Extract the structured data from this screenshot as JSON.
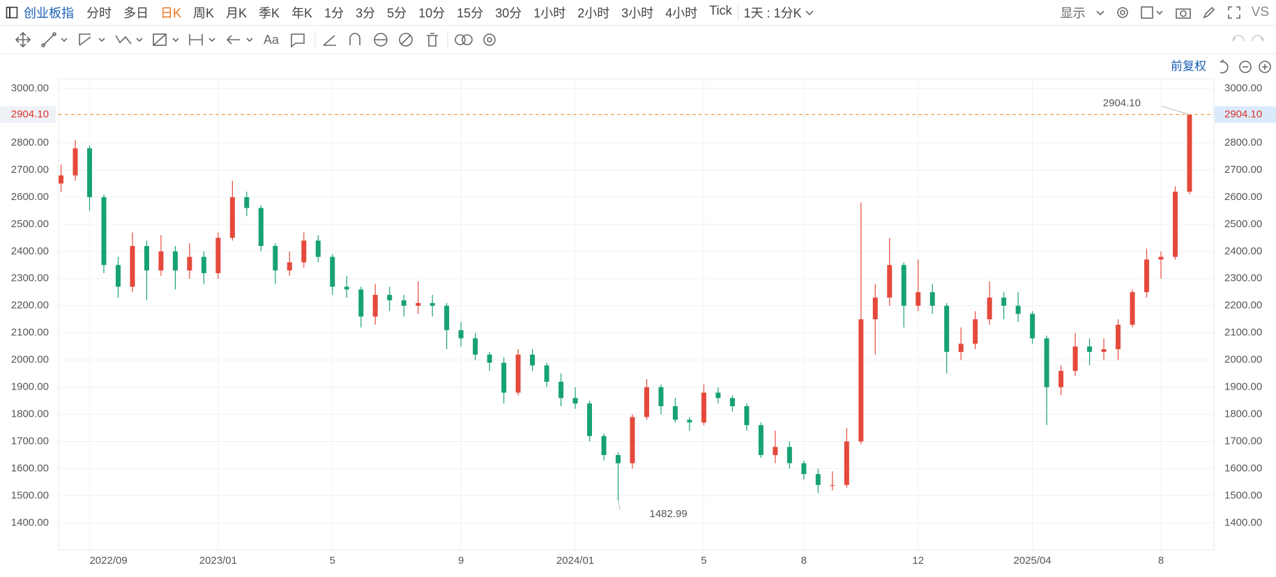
{
  "toolbar": {
    "symbol": "创业板指",
    "periods": [
      "分时",
      "多日",
      "日K",
      "周K",
      "月K",
      "季K",
      "年K",
      "1分",
      "3分",
      "5分",
      "10分",
      "15分",
      "30分",
      "1小时",
      "2小时",
      "3小时",
      "4小时",
      "Tick"
    ],
    "active_period": 2,
    "active_color": "#e8731c",
    "interval": "1天 : 1分K",
    "display": "显示",
    "compare": "VS",
    "text_tool": "Aa",
    "adjust": "前复权"
  },
  "chart_data": {
    "type": "candlestick",
    "categories": [
      null,
      null,
      "2022/09",
      null,
      null,
      null,
      null,
      null,
      null,
      null,
      null,
      "2023/01",
      null,
      null,
      null,
      null,
      null,
      null,
      null,
      "5",
      null,
      null,
      null,
      null,
      null,
      null,
      null,
      null,
      "9",
      null,
      null,
      null,
      null,
      null,
      null,
      null,
      "2024/01",
      null,
      null,
      null,
      null,
      null,
      null,
      null,
      null,
      "5",
      null,
      null,
      null,
      null,
      null,
      null,
      "8",
      null,
      null,
      null,
      null,
      null,
      null,
      null,
      "12",
      null,
      null,
      null,
      null,
      null,
      null,
      null,
      "2025/04",
      null,
      null,
      null,
      null,
      null,
      null,
      null,
      null,
      "8",
      null,
      null
    ],
    "ohlc": [
      [
        2650,
        2720,
        2620,
        2680
      ],
      [
        2680,
        2810,
        2660,
        2780
      ],
      [
        2780,
        2790,
        2550,
        2600
      ],
      [
        2600,
        2610,
        2320,
        2350
      ],
      [
        2350,
        2380,
        2230,
        2270
      ],
      [
        2270,
        2470,
        2250,
        2420
      ],
      [
        2420,
        2440,
        2220,
        2330
      ],
      [
        2330,
        2460,
        2310,
        2400
      ],
      [
        2400,
        2420,
        2260,
        2330
      ],
      [
        2330,
        2430,
        2300,
        2380
      ],
      [
        2380,
        2400,
        2280,
        2320
      ],
      [
        2320,
        2470,
        2300,
        2450
      ],
      [
        2450,
        2660,
        2440,
        2600
      ],
      [
        2600,
        2620,
        2530,
        2560
      ],
      [
        2560,
        2570,
        2400,
        2420
      ],
      [
        2420,
        2430,
        2280,
        2330
      ],
      [
        2330,
        2400,
        2310,
        2360
      ],
      [
        2360,
        2470,
        2340,
        2440
      ],
      [
        2440,
        2460,
        2360,
        2380
      ],
      [
        2380,
        2390,
        2240,
        2270
      ],
      [
        2270,
        2310,
        2230,
        2260
      ],
      [
        2260,
        2270,
        2120,
        2160
      ],
      [
        2160,
        2280,
        2130,
        2240
      ],
      [
        2240,
        2270,
        2180,
        2220
      ],
      [
        2220,
        2240,
        2160,
        2200
      ],
      [
        2200,
        2290,
        2170,
        2210
      ],
      [
        2210,
        2240,
        2160,
        2200
      ],
      [
        2200,
        2210,
        2040,
        2110
      ],
      [
        2110,
        2140,
        2050,
        2080
      ],
      [
        2080,
        2100,
        2000,
        2020
      ],
      [
        2020,
        2030,
        1960,
        1990
      ],
      [
        1990,
        2010,
        1840,
        1880
      ],
      [
        1880,
        2040,
        1870,
        2020
      ],
      [
        2020,
        2040,
        1960,
        1980
      ],
      [
        1980,
        1990,
        1900,
        1920
      ],
      [
        1920,
        1950,
        1830,
        1860
      ],
      [
        1860,
        1900,
        1820,
        1840
      ],
      [
        1840,
        1850,
        1700,
        1720
      ],
      [
        1720,
        1730,
        1630,
        1650
      ],
      [
        1650,
        1660,
        1482.99,
        1620
      ],
      [
        1620,
        1800,
        1600,
        1790
      ],
      [
        1790,
        1930,
        1780,
        1900
      ],
      [
        1900,
        1910,
        1800,
        1830
      ],
      [
        1830,
        1860,
        1770,
        1780
      ],
      [
        1780,
        1790,
        1740,
        1770
      ],
      [
        1770,
        1910,
        1760,
        1880
      ],
      [
        1880,
        1900,
        1840,
        1860
      ],
      [
        1860,
        1870,
        1810,
        1830
      ],
      [
        1830,
        1840,
        1740,
        1760
      ],
      [
        1760,
        1770,
        1640,
        1650
      ],
      [
        1650,
        1740,
        1620,
        1680
      ],
      [
        1680,
        1700,
        1600,
        1620
      ],
      [
        1620,
        1630,
        1560,
        1580
      ],
      [
        1580,
        1600,
        1510,
        1540
      ],
      [
        1540,
        1590,
        1520,
        1540
      ],
      [
        1540,
        1750,
        1530,
        1700
      ],
      [
        1700,
        2580,
        1690,
        2150
      ],
      [
        2150,
        2280,
        2020,
        2230
      ],
      [
        2230,
        2450,
        2200,
        2350
      ],
      [
        2350,
        2360,
        2120,
        2200
      ],
      [
        2200,
        2370,
        2180,
        2250
      ],
      [
        2250,
        2280,
        2170,
        2200
      ],
      [
        2200,
        2210,
        1950,
        2030
      ],
      [
        2030,
        2120,
        2000,
        2060
      ],
      [
        2060,
        2180,
        2040,
        2150
      ],
      [
        2150,
        2290,
        2130,
        2230
      ],
      [
        2230,
        2250,
        2150,
        2200
      ],
      [
        2200,
        2250,
        2140,
        2170
      ],
      [
        2170,
        2180,
        2060,
        2080
      ],
      [
        2080,
        2090,
        1760,
        1900
      ],
      [
        1900,
        1980,
        1870,
        1960
      ],
      [
        1960,
        2100,
        1940,
        2050
      ],
      [
        2050,
        2080,
        1980,
        2030
      ],
      [
        2030,
        2080,
        2000,
        2040
      ],
      [
        2040,
        2150,
        2000,
        2130
      ],
      [
        2130,
        2260,
        2120,
        2250
      ],
      [
        2250,
        2410,
        2230,
        2370
      ],
      [
        2370,
        2400,
        2300,
        2380
      ],
      [
        2380,
        2640,
        2370,
        2620
      ],
      [
        2620,
        2904.1,
        2610,
        2904.1
      ]
    ],
    "up_color": "#e5493b",
    "down_color": "#17a273",
    "ylim": [
      1301,
      3036
    ],
    "yticks": [
      {
        "value": 1400,
        "label": "1400.00"
      },
      {
        "value": 1500,
        "label": "1500.00"
      },
      {
        "value": 1600,
        "label": "1600.00"
      },
      {
        "value": 1700,
        "label": "1700.00"
      },
      {
        "value": 1800,
        "label": "1800.00"
      },
      {
        "value": 1900,
        "label": "1900.00"
      },
      {
        "value": 2000,
        "label": "2000.00"
      },
      {
        "value": 2100,
        "label": "2100.00"
      },
      {
        "value": 2200,
        "label": "2200.00"
      },
      {
        "value": 2300,
        "label": "2300.00"
      },
      {
        "value": 2400,
        "label": "2400.00"
      },
      {
        "value": 2500,
        "label": "2500.00"
      },
      {
        "value": 2600,
        "label": "2600.00"
      },
      {
        "value": 2700,
        "label": "2700.00"
      },
      {
        "value": 2800,
        "label": "2800.00"
      },
      {
        "value": 3000,
        "label": "3000.00"
      }
    ],
    "current_price": {
      "value": 2904.1,
      "label": "2904.10"
    },
    "annotations": [
      {
        "value": 2904.1,
        "label": "2904.10"
      },
      {
        "value": 1482.99,
        "label": "1482.99"
      }
    ],
    "grid": true
  }
}
